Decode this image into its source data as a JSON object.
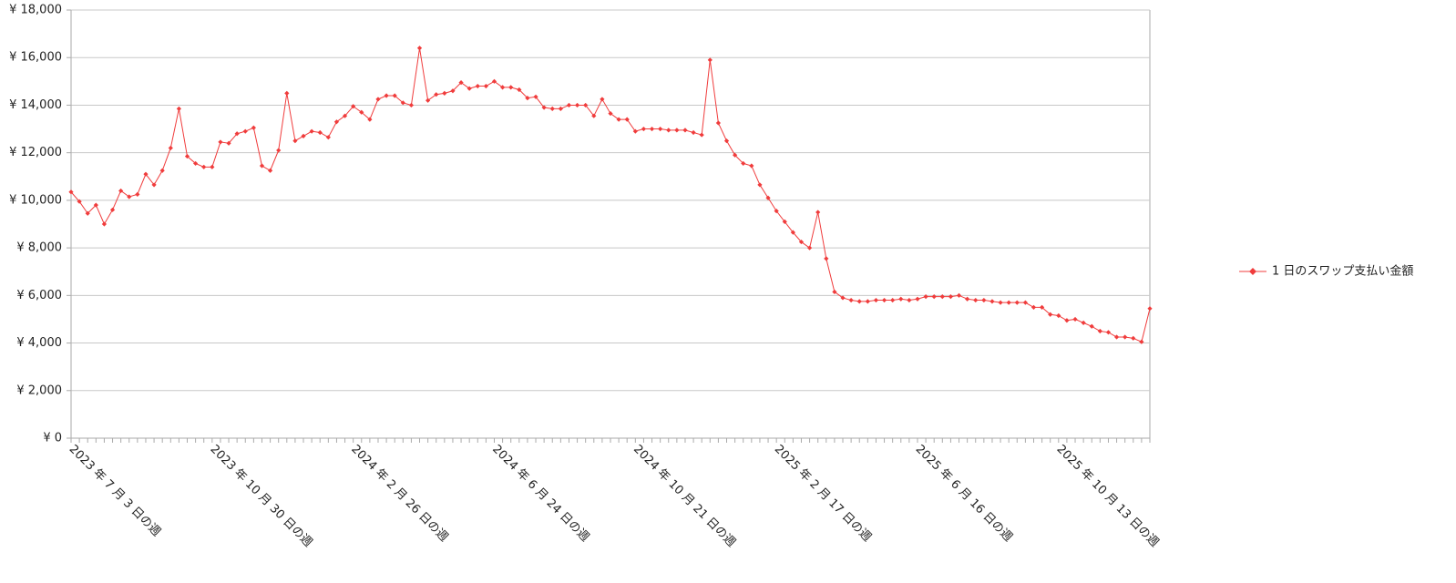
{
  "chart_data": {
    "type": "line",
    "categories": [
      "2023 年 7 月 3 日の週",
      null,
      null,
      null,
      null,
      null,
      null,
      null,
      null,
      null,
      null,
      null,
      null,
      null,
      null,
      null,
      null,
      "2023 年 10 月 30 日の週",
      null,
      null,
      null,
      null,
      null,
      null,
      null,
      null,
      null,
      null,
      null,
      null,
      null,
      null,
      null,
      null,
      "2024 年 2 月 26 日の週",
      null,
      null,
      null,
      null,
      null,
      null,
      null,
      null,
      null,
      null,
      null,
      null,
      null,
      null,
      null,
      null,
      "2024 年 6 月 24 日の週",
      null,
      null,
      null,
      null,
      null,
      null,
      null,
      null,
      null,
      null,
      null,
      null,
      null,
      null,
      null,
      null,
      "2024 年 10 月 21 日の週",
      null,
      null,
      null,
      null,
      null,
      null,
      null,
      null,
      null,
      null,
      null,
      null,
      null,
      null,
      null,
      null,
      "2025 年 2 月 17 日の週",
      null,
      null,
      null,
      null,
      null,
      null,
      null,
      null,
      null,
      null,
      null,
      null,
      null,
      null,
      null,
      null,
      "2025 年 6 月 16 日の週",
      null,
      null,
      null,
      null,
      null,
      null,
      null,
      null,
      null,
      null,
      null,
      null,
      null,
      null,
      null,
      null,
      "2025 年 10 月 13 日の週",
      null,
      null,
      null,
      null,
      null,
      null,
      null,
      null,
      null,
      null,
      null
    ],
    "series": [
      {
        "name": "1 日のスワップ支払い金額",
        "color": "#f03c3c",
        "values": [
          10350,
          9950,
          9450,
          9800,
          9000,
          9600,
          10400,
          10150,
          10250,
          11100,
          10650,
          11250,
          12200,
          13850,
          11850,
          11550,
          11400,
          11400,
          12450,
          12400,
          12800,
          12900,
          13050,
          11450,
          11250,
          12100,
          14500,
          12500,
          12700,
          12900,
          12850,
          12650,
          13300,
          13550,
          13950,
          13700,
          13400,
          14250,
          14400,
          14400,
          14100,
          14000,
          16400,
          14200,
          14450,
          14500,
          14600,
          14950,
          14700,
          14800,
          14800,
          15000,
          14750,
          14750,
          14650,
          14300,
          14350,
          13900,
          13850,
          13850,
          14000,
          14000,
          14000,
          13550,
          14250,
          13650,
          13400,
          13400,
          12900,
          13000,
          13000,
          13000,
          12950,
          12950,
          12950,
          12850,
          12750,
          15900,
          13250,
          12500,
          11900,
          11550,
          11450,
          10650,
          10100,
          9550,
          9100,
          8650,
          8250,
          8000,
          9500,
          7550,
          6150,
          5900,
          5800,
          5750,
          5750,
          5800,
          5800,
          5800,
          5850,
          5800,
          5850,
          5950,
          5950,
          5950,
          5950,
          6000,
          5850,
          5800,
          5800,
          5750,
          5700,
          5700,
          5700,
          5700,
          5500,
          5500,
          5200,
          5150,
          4950,
          5000,
          4850,
          4700,
          4500,
          4450,
          4250,
          4250,
          4200,
          4050,
          5450
        ]
      }
    ],
    "ylim": [
      0,
      18000
    ],
    "yticks": [
      {
        "value": 0,
        "label": "¥ 0"
      },
      {
        "value": 2000,
        "label": "¥ 2,000"
      },
      {
        "value": 4000,
        "label": "¥ 4,000"
      },
      {
        "value": 6000,
        "label": "¥ 6,000"
      },
      {
        "value": 8000,
        "label": "¥ 8,000"
      },
      {
        "value": 10000,
        "label": "¥ 10,000"
      },
      {
        "value": 12000,
        "label": "¥ 12,000"
      },
      {
        "value": 14000,
        "label": "¥ 14,000"
      },
      {
        "value": 16000,
        "label": "¥ 16,000"
      },
      {
        "value": 18000,
        "label": "¥ 18,000"
      }
    ],
    "grid": true,
    "legend": "right"
  }
}
